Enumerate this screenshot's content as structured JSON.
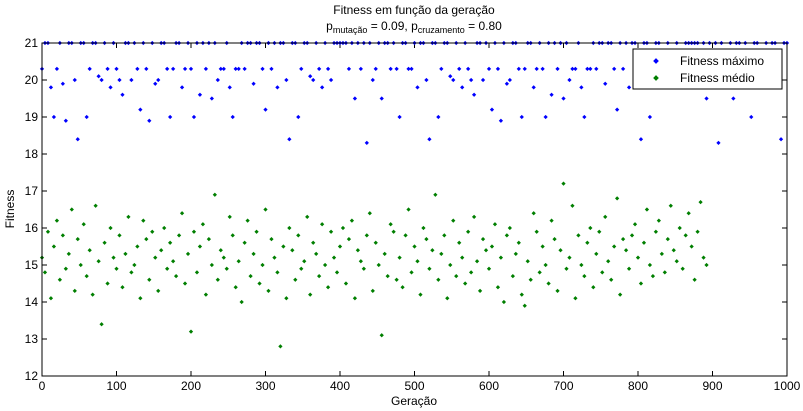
{
  "chart_data": {
    "type": "scatter",
    "title": "Fitness em função da geração",
    "subtitle": {
      "p1_base": "p",
      "p1_sub": "mutação",
      "p1_value": " = 0.09, ",
      "p2_base": "p",
      "p2_sub": "cruzamento",
      "p2_value": " = 0.80"
    },
    "xlabel": "Geração",
    "ylabel": "Fitness",
    "xlim": [
      0,
      1000
    ],
    "ylim": [
      12,
      21
    ],
    "xticks": [
      0,
      100,
      200,
      300,
      400,
      500,
      600,
      700,
      800,
      900,
      1000
    ],
    "yticks": [
      12,
      13,
      14,
      15,
      16,
      17,
      18,
      19,
      20,
      21
    ],
    "grid": false,
    "legend_position": "top-right",
    "x_start": 0,
    "x_end": 1000,
    "x_step": 4,
    "series": [
      {
        "name": "Fitness máximo",
        "color": "#0000ff",
        "values": [
          20.3,
          21,
          21,
          19.8,
          19,
          20.3,
          21,
          19.9,
          18.9,
          21,
          21,
          20,
          18.4,
          21,
          21,
          19,
          20.3,
          21,
          21,
          20.1,
          20,
          21,
          20.3,
          19.8,
          21,
          20.3,
          20,
          19.6,
          21,
          21,
          20,
          21,
          20.3,
          19.2,
          21,
          20.3,
          18.9,
          21,
          19.9,
          20,
          21,
          21,
          20.3,
          19,
          20.3,
          21,
          21,
          19.8,
          20.3,
          21,
          20.3,
          19,
          21,
          19.6,
          21,
          20.3,
          21,
          19.5,
          21,
          20,
          20.3,
          20.3,
          21,
          19.8,
          19,
          20.3,
          20.3,
          21,
          20.3,
          21,
          21,
          19.9,
          21,
          21,
          20.3,
          19.2,
          21,
          20.3,
          21,
          19.8,
          21,
          21,
          20,
          18.4,
          21,
          21,
          19,
          20.3,
          21,
          21,
          20.1,
          20,
          21,
          20.3,
          19.8,
          21,
          20.3,
          20,
          21,
          21,
          21,
          21,
          21,
          20.3,
          21,
          19.5,
          21,
          20.3,
          21,
          18.3,
          21,
          20,
          20.3,
          21,
          19.5,
          21,
          21,
          20.3,
          21,
          20.3,
          19,
          21,
          21,
          20.3,
          20.3,
          21,
          19.8,
          21,
          21,
          20,
          18.4,
          21,
          21,
          19,
          20.3,
          21,
          21,
          20.1,
          20,
          21,
          20.3,
          19.8,
          21,
          20.3,
          20,
          19.6,
          21,
          21,
          20,
          21,
          20.3,
          19.2,
          21,
          20.3,
          18.9,
          21,
          19.9,
          20,
          21,
          21,
          20.3,
          19,
          20.3,
          21,
          21,
          19.8,
          20.3,
          21,
          20.3,
          19,
          21,
          19.6,
          21,
          20.3,
          21,
          19.5,
          21,
          20,
          20.3,
          20.3,
          21,
          19.8,
          19,
          20.3,
          20.3,
          21,
          20.3,
          21,
          21,
          19.9,
          21,
          21,
          20.3,
          19.2,
          21,
          20.3,
          21,
          19.8,
          21,
          21,
          20,
          18.4,
          21,
          21,
          19,
          20.3,
          21,
          21,
          20.1,
          20,
          21,
          20.3,
          19.8,
          21,
          20.3,
          20,
          21,
          21,
          21,
          21,
          21,
          20.3,
          21,
          19.5,
          21,
          20.3,
          21,
          18.3,
          21,
          20,
          20.3,
          21,
          19.5,
          21,
          21,
          20.3,
          21,
          20.3,
          19,
          21,
          21,
          20.3,
          20.3,
          21,
          19.8,
          21,
          21,
          20,
          18.4,
          21,
          21,
          19,
          20.3,
          21,
          21,
          20.1,
          20,
          21,
          20.3,
          19.8,
          21,
          20.3,
          20
        ]
      },
      {
        "name": "Fitness médio",
        "color": "#007f00",
        "values": [
          15.2,
          14.8,
          15.9,
          14.1,
          15.5,
          16.2,
          14.6,
          15.8,
          14.9,
          15.3,
          16.5,
          14.3,
          15.7,
          15.0,
          16.1,
          14.7,
          15.4,
          14.2,
          16.6,
          15.1,
          13.4,
          15.6,
          14.5,
          16.0,
          15.2,
          14.9,
          15.8,
          14.4,
          15.3,
          16.3,
          14.8,
          15.0,
          15.5,
          14.1,
          16.2,
          15.7,
          14.6,
          15.9,
          15.2,
          14.3,
          15.4,
          16.0,
          14.9,
          15.6,
          15.1,
          14.7,
          15.8,
          16.4,
          14.5,
          15.3,
          13.2,
          15.9,
          14.8,
          15.5,
          16.1,
          14.2,
          15.7,
          15.0,
          16.9,
          14.6,
          15.4,
          15.2,
          14.9,
          16.3,
          15.8,
          14.4,
          15.1,
          14.0,
          15.6,
          16.2,
          14.7,
          15.3,
          15.9,
          14.5,
          15.0,
          16.5,
          14.3,
          15.7,
          15.2,
          14.8,
          12.8,
          15.5,
          14.1,
          16.0,
          15.4,
          14.6,
          15.8,
          14.9,
          15.1,
          16.3,
          14.2,
          15.6,
          15.3,
          14.7,
          16.1,
          15.0,
          14.4,
          15.9,
          15.2,
          14.8,
          15.5,
          16.0,
          14.5,
          15.7,
          16.2,
          14.1,
          15.4,
          15.1,
          14.9,
          15.8,
          16.4,
          14.3,
          15.6,
          15.0,
          13.1,
          15.3,
          14.7,
          16.1,
          15.9,
          14.6,
          15.2,
          14.4,
          15.8,
          16.5,
          14.8,
          15.5,
          15.1,
          14.2,
          16.0,
          15.7,
          14.9,
          15.4,
          16.9,
          14.6,
          15.3,
          15.8,
          14.1,
          15.0,
          16.2,
          14.7,
          15.6,
          15.2,
          14.5,
          15.9,
          14.8,
          16.3,
          15.1,
          14.3,
          15.7,
          15.4,
          14.9,
          15.5,
          16.1,
          14.4,
          15.2,
          14.0,
          15.8,
          16.0,
          14.7,
          15.3,
          15.6,
          14.2,
          13.9,
          15.1,
          14.6,
          16.4,
          15.9,
          14.8,
          15.5,
          15.0,
          14.5,
          16.2,
          15.7,
          14.3,
          15.4,
          17.2,
          14.9,
          15.2,
          16.6,
          14.1,
          15.8,
          15.0,
          14.7,
          15.6,
          16.0,
          14.4,
          15.3,
          15.9,
          14.8,
          16.3,
          15.1,
          14.6,
          15.5,
          16.8,
          14.2,
          15.7,
          15.4,
          14.9,
          15.8,
          16.1,
          15.2,
          14.5,
          15.6,
          16.5,
          15.0,
          14.7,
          15.9,
          16.2,
          15.3,
          14.8,
          15.7,
          16.6,
          15.4,
          15.1,
          16.0,
          14.9,
          15.8,
          16.4,
          15.5,
          14.6,
          15.9,
          16.7,
          15.2,
          15.0
        ]
      }
    ]
  }
}
